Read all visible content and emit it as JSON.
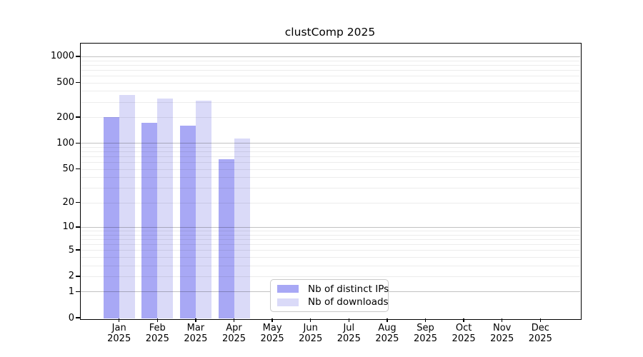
{
  "title": "clustComp 2025",
  "chart_data": {
    "type": "bar",
    "title": "clustComp 2025",
    "yscale": "log1p",
    "grid": "horizontal",
    "year": "2025",
    "months": [
      "Jan",
      "Feb",
      "Mar",
      "Apr",
      "May",
      "Jun",
      "Jul",
      "Aug",
      "Sep",
      "Oct",
      "Nov",
      "Dec"
    ],
    "categories": [
      "Jan 2025",
      "Feb 2025",
      "Mar 2025",
      "Apr 2025",
      "May 2025",
      "Jun 2025",
      "Jul 2025",
      "Aug 2025",
      "Sep 2025",
      "Oct 2025",
      "Nov 2025",
      "Dec 2025"
    ],
    "series": [
      {
        "name": "Nb of distinct IPs",
        "color": "#a8a8f5",
        "values": [
          200,
          172,
          160,
          65,
          null,
          null,
          null,
          null,
          null,
          null,
          null,
          null
        ]
      },
      {
        "name": "Nb of downloads",
        "color": "#dadaf8",
        "values": [
          360,
          330,
          308,
          114,
          null,
          null,
          null,
          null,
          null,
          null,
          null,
          null
        ]
      }
    ],
    "ytick_values": [
      0,
      1,
      2,
      5,
      10,
      20,
      50,
      100,
      200,
      500,
      1000
    ],
    "ytick_labels": [
      "0",
      "1",
      "2",
      "5",
      "10",
      "20",
      "50",
      "100",
      "200",
      "500",
      "1000"
    ],
    "ylim": [
      0,
      1400
    ],
    "legend_position": "inside-bottom-center"
  },
  "legend": {
    "items": [
      {
        "label": "Nb of distinct IPs",
        "color": "#a8a8f5"
      },
      {
        "label": "Nb of downloads",
        "color": "#dadaf8"
      }
    ]
  },
  "colors": {
    "background": "#ffffff",
    "bar_distinct_ips": "#a8a8f5",
    "bar_downloads": "#dadaf8",
    "grid_minor": "rgba(0,0,0,0.075)",
    "grid_major": "rgba(0,0,0,0.24)",
    "axis": "#000000",
    "legend_border": "#c9c9c9"
  }
}
